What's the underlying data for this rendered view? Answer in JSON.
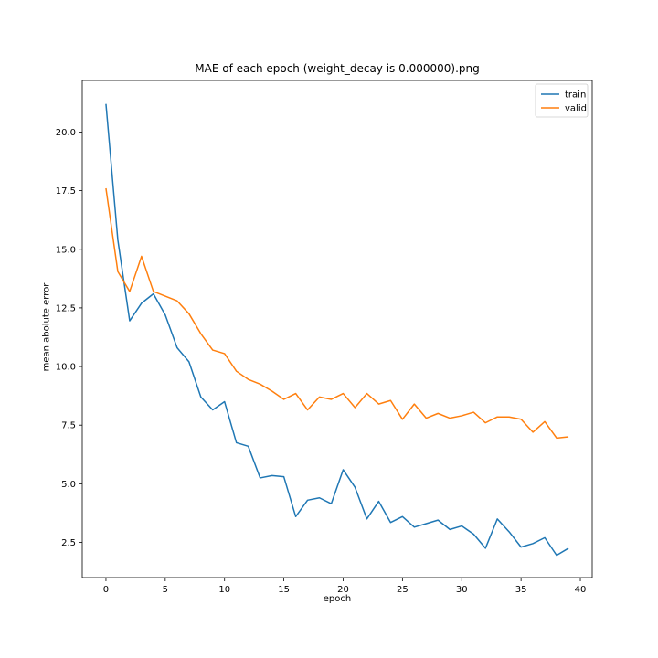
{
  "chart_data": {
    "type": "line",
    "title": "MAE of each epoch (weight_decay is 0.000000).png",
    "xlabel": "epoch",
    "ylabel": "mean abolute error",
    "xlim": [
      -2,
      41
    ],
    "ylim": [
      1.0,
      22.2
    ],
    "xticks": [
      0,
      5,
      10,
      15,
      20,
      25,
      30,
      35,
      40
    ],
    "yticks": [
      2.5,
      5.0,
      7.5,
      10.0,
      12.5,
      15.0,
      17.5,
      20.0
    ],
    "ytick_labels": [
      "2.5",
      "5.0",
      "7.5",
      "10.0",
      "12.5",
      "15.0",
      "17.5",
      "20.0"
    ],
    "grid": false,
    "legend_position": "top-right",
    "x": [
      0,
      1,
      2,
      3,
      4,
      5,
      6,
      7,
      8,
      9,
      10,
      11,
      12,
      13,
      14,
      15,
      16,
      17,
      18,
      19,
      20,
      21,
      22,
      23,
      24,
      25,
      26,
      27,
      28,
      29,
      30,
      31,
      32,
      33,
      34,
      35,
      36,
      37,
      38,
      39
    ],
    "series": [
      {
        "name": "train",
        "color": "#1f77b4",
        "values": [
          21.2,
          15.4,
          11.95,
          12.7,
          13.1,
          12.2,
          10.8,
          10.2,
          8.7,
          8.15,
          8.5,
          6.75,
          6.6,
          5.25,
          5.35,
          5.3,
          3.6,
          4.3,
          4.4,
          4.15,
          5.6,
          4.85,
          3.5,
          4.25,
          3.35,
          3.6,
          3.15,
          3.3,
          3.45,
          3.05,
          3.2,
          2.85,
          2.25,
          3.5,
          2.95,
          2.3,
          2.45,
          2.7,
          1.95,
          2.25
        ]
      },
      {
        "name": "valid",
        "color": "#ff7f0e",
        "values": [
          17.6,
          14.05,
          13.2,
          14.7,
          13.2,
          13.0,
          12.8,
          12.25,
          11.4,
          10.7,
          10.55,
          9.8,
          9.45,
          9.25,
          8.95,
          8.6,
          8.85,
          8.15,
          8.7,
          8.6,
          8.85,
          8.25,
          8.85,
          8.4,
          8.55,
          7.75,
          8.4,
          7.8,
          8.0,
          7.8,
          7.9,
          8.05,
          7.6,
          7.85,
          7.85,
          7.75,
          7.2,
          7.65,
          6.95,
          7.0
        ]
      }
    ]
  }
}
